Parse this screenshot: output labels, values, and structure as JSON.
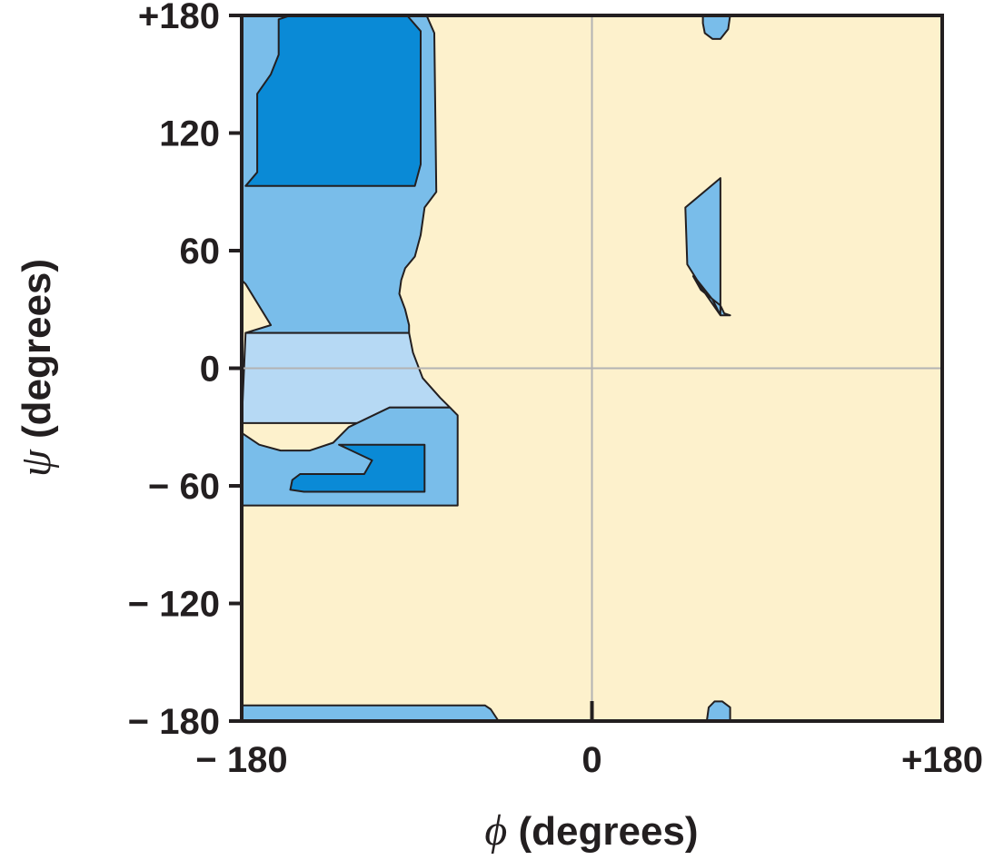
{
  "chart_data": {
    "type": "heatmap",
    "title": "",
    "xlabel": {
      "symbol": "ϕ",
      "text": " (degrees)"
    },
    "ylabel": {
      "symbol": "ψ",
      "text": " (degrees)"
    },
    "xlim": [
      -180,
      180
    ],
    "ylim": [
      -180,
      180
    ],
    "grid": "zero lines only",
    "x_tick_labels": [
      {
        "value": -180,
        "label": "− 180"
      },
      {
        "value": 0,
        "label": "0"
      },
      {
        "value": 180,
        "label": "+180"
      }
    ],
    "y_tick_labels": [
      {
        "value": 180,
        "label": "+180"
      },
      {
        "value": 120,
        "label": "120"
      },
      {
        "value": 60,
        "label": "60"
      },
      {
        "value": 0,
        "label": "0"
      },
      {
        "value": -60,
        "label": "− 60"
      },
      {
        "value": -120,
        "label": "− 120"
      },
      {
        "value": -180,
        "label": "− 180"
      }
    ],
    "colors": {
      "background": "#fdf1cc",
      "allowed": "#79bdea",
      "fully_allowed": "#0a8ad6",
      "bridge": "#b6d9f4",
      "outline": "#231f20",
      "grid": "#b3b3b3"
    },
    "regions": [
      {
        "name": "outer-allowed-upper-left",
        "fill": "allowed",
        "points": [
          [
            -180,
            180
          ],
          [
            -85,
            180
          ],
          [
            -81,
            171
          ],
          [
            -80,
            90
          ],
          [
            -86,
            82
          ],
          [
            -88,
            68
          ],
          [
            -91,
            57
          ],
          [
            -96,
            51
          ],
          [
            -98,
            45
          ],
          [
            -99,
            38
          ],
          [
            -96,
            30
          ],
          [
            -94,
            22
          ],
          [
            -94,
            18
          ],
          [
            -178,
            18
          ],
          [
            -165,
            22
          ],
          [
            -178,
            43
          ],
          [
            -180,
            45
          ]
        ]
      },
      {
        "name": "bridge-alpha",
        "fill": "bridge",
        "points": [
          [
            -178,
            18
          ],
          [
            -94,
            18
          ],
          [
            -92,
            8
          ],
          [
            -87,
            -5
          ],
          [
            -78,
            -15
          ],
          [
            -73,
            -20
          ],
          [
            -104,
            -20
          ],
          [
            -105,
            -28
          ],
          [
            -180,
            -28
          ]
        ]
      },
      {
        "name": "outer-allowed-lower-left",
        "fill": "allowed",
        "points": [
          [
            -180,
            -33
          ],
          [
            -171,
            -39
          ],
          [
            -160,
            -42
          ],
          [
            -145,
            -42
          ],
          [
            -133,
            -38
          ],
          [
            -125,
            -30
          ],
          [
            -104,
            -20
          ],
          [
            -73,
            -20
          ],
          [
            -69,
            -24
          ],
          [
            -69,
            -70
          ],
          [
            -180,
            -70
          ]
        ]
      },
      {
        "name": "outer-allowed-bottom-strip",
        "fill": "allowed",
        "points": [
          [
            -180,
            -180
          ],
          [
            -48,
            -180
          ],
          [
            -50,
            -177
          ],
          [
            -52,
            -174
          ],
          [
            -55,
            -172
          ],
          [
            -180,
            -172
          ]
        ]
      },
      {
        "name": "fully-allowed-beta",
        "fill": "fully_allowed",
        "points": [
          [
            -152,
            180
          ],
          [
            -95,
            180
          ],
          [
            -88,
            172
          ],
          [
            -88,
            104
          ],
          [
            -91,
            93
          ],
          [
            -178,
            93
          ],
          [
            -172,
            100
          ],
          [
            -172,
            140
          ],
          [
            -165,
            150
          ],
          [
            -161,
            160
          ],
          [
            -161,
            178
          ],
          [
            -155,
            180
          ]
        ]
      },
      {
        "name": "fully-allowed-alpha",
        "fill": "fully_allowed",
        "points": [
          [
            -130,
            -39
          ],
          [
            -86,
            -39
          ],
          [
            -86,
            -63
          ],
          [
            -102,
            -63
          ],
          [
            -148,
            -63
          ],
          [
            -155,
            -62
          ],
          [
            -154,
            -57
          ],
          [
            -150,
            -54
          ],
          [
            -117,
            -54
          ],
          [
            -113,
            -47
          ]
        ]
      },
      {
        "name": "allowed-left-handed",
        "fill": "allowed",
        "points": [
          [
            52,
            47
          ],
          [
            56,
            40
          ],
          [
            66,
            32
          ],
          [
            67,
            30
          ],
          [
            68,
            28
          ],
          [
            71,
            27
          ],
          [
            66,
            27
          ],
          [
            62,
            35
          ],
          [
            54,
            45
          ],
          [
            49,
            53
          ],
          [
            48,
            82
          ],
          [
            66,
            97
          ],
          [
            66,
            27
          ]
        ]
      },
      {
        "name": "allowed-top-edge-sliver",
        "fill": "allowed",
        "points": [
          [
            57,
            180
          ],
          [
            71,
            180
          ],
          [
            70,
            173
          ],
          [
            66,
            168
          ],
          [
            62,
            168
          ],
          [
            58,
            171
          ],
          [
            57,
            176
          ]
        ]
      },
      {
        "name": "allowed-bottom-edge-sliver",
        "fill": "allowed",
        "points": [
          [
            59,
            -180
          ],
          [
            71,
            -180
          ],
          [
            71,
            -173
          ],
          [
            67,
            -170
          ],
          [
            63,
            -170
          ],
          [
            60,
            -173
          ]
        ]
      }
    ]
  }
}
